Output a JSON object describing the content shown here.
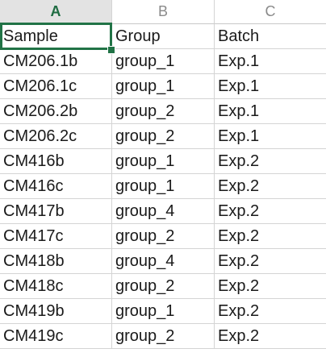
{
  "column_headers": [
    {
      "label": "A",
      "selected": true
    },
    {
      "label": "B",
      "selected": false
    },
    {
      "label": "C",
      "selected": false
    }
  ],
  "rows": [
    [
      "Sample",
      "Group",
      "Batch"
    ],
    [
      "CM206.1b",
      "group_1",
      "Exp.1"
    ],
    [
      "CM206.1c",
      "group_1",
      "Exp.1"
    ],
    [
      "CM206.2b",
      "group_2",
      "Exp.1"
    ],
    [
      "CM206.2c",
      "group_2",
      "Exp.1"
    ],
    [
      "CM416b",
      "group_1",
      "Exp.2"
    ],
    [
      "CM416c",
      "group_1",
      "Exp.2"
    ],
    [
      "CM417b",
      "group_4",
      "Exp.2"
    ],
    [
      "CM417c",
      "group_2",
      "Exp.2"
    ],
    [
      "CM418b",
      "group_4",
      "Exp.2"
    ],
    [
      "CM418c",
      "group_2",
      "Exp.2"
    ],
    [
      "CM419b",
      "group_1",
      "Exp.2"
    ],
    [
      "CM419c",
      "group_2",
      "Exp.2"
    ]
  ],
  "selection": {
    "active_cell": "A1"
  },
  "colors": {
    "accent": "#217346"
  }
}
